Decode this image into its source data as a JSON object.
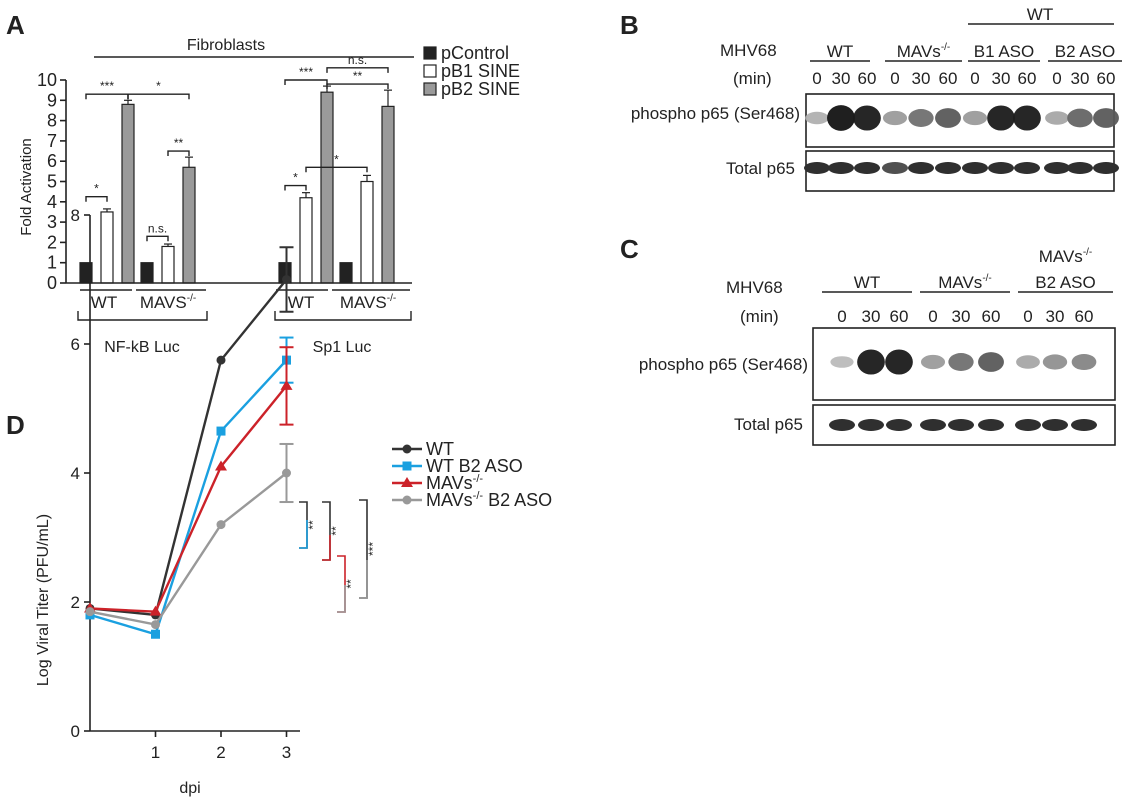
{
  "panels": {
    "A": {
      "label": "A",
      "group_title": "Fibroblasts",
      "reporters": [
        "NF-kB Luc",
        "Sp1 Luc"
      ],
      "cell_groups": [
        "WT",
        "MAVS"
      ],
      "sup": "-/-"
    },
    "B": {
      "label": "B",
      "virus": "MHV68",
      "time_unit": "(min)",
      "header_wt": "WT",
      "lanes": [
        {
          "name": "WT",
          "sup": "",
          "times": [
            "0",
            "30",
            "60"
          ]
        },
        {
          "name": "MAVs",
          "sup": "-/-",
          "times": [
            "0",
            "30",
            "60"
          ]
        },
        {
          "name": "B1 ASO",
          "sup": "",
          "times": [
            "0",
            "30",
            "60"
          ]
        },
        {
          "name": "B2 ASO",
          "sup": "",
          "times": [
            "0",
            "30",
            "60"
          ]
        }
      ],
      "rows": [
        "phospho p65 (Ser468)",
        "Total p65"
      ],
      "phospho_intensity": [
        0.25,
        0.98,
        0.95,
        0.35,
        0.55,
        0.65,
        0.35,
        0.95,
        0.95,
        0.3,
        0.6,
        0.65
      ],
      "total_intensity": [
        0.85,
        0.85,
        0.85,
        0.7,
        0.85,
        0.85,
        0.85,
        0.85,
        0.85,
        0.85,
        0.85,
        0.85
      ]
    },
    "C": {
      "label": "C",
      "virus": "MHV68",
      "time_unit": "(min)",
      "lanes": [
        {
          "name": "WT",
          "sup": "",
          "times": [
            "0",
            "30",
            "60"
          ]
        },
        {
          "name": "MAVs",
          "sup": "-/-",
          "times": [
            "0",
            "30",
            "60"
          ]
        },
        {
          "name": "B2 ASO",
          "top": "MAVs",
          "sup": "-/-",
          "times": [
            "0",
            "30",
            "60"
          ]
        }
      ],
      "rows": [
        "phospho p65 (Ser468)",
        "Total p65"
      ],
      "phospho_intensity": [
        0.2,
        0.95,
        0.95,
        0.35,
        0.55,
        0.65,
        0.3,
        0.4,
        0.45
      ],
      "total_intensity": [
        0.85,
        0.85,
        0.85,
        0.85,
        0.85,
        0.85,
        0.85,
        0.85,
        0.85
      ]
    },
    "D": {
      "label": "D"
    }
  },
  "chart_data": [
    {
      "type": "bar",
      "ylabel": "Fold Activation",
      "ylim": [
        0,
        10
      ],
      "yticks": [
        0,
        1,
        2,
        3,
        4,
        5,
        6,
        7,
        8,
        9,
        10
      ],
      "legend": [
        "pControl",
        "pB1 SINE",
        "pB2 SINE"
      ],
      "colors": [
        "#222222",
        "#ffffff",
        "#9a9a9a"
      ],
      "groups": [
        {
          "reporter": "NF-kB Luc",
          "cells": "WT",
          "values": [
            1.0,
            3.5,
            8.8
          ],
          "errors": [
            0,
            0.15,
            0.2
          ]
        },
        {
          "reporter": "NF-kB Luc",
          "cells": "MAVS-/-",
          "values": [
            1.0,
            1.8,
            5.7
          ],
          "errors": [
            0,
            0.12,
            0.5
          ]
        },
        {
          "reporter": "Sp1 Luc",
          "cells": "WT",
          "values": [
            1.0,
            4.2,
            9.4
          ],
          "errors": [
            0,
            0.25,
            0.3
          ]
        },
        {
          "reporter": "Sp1 Luc",
          "cells": "MAVS-/-",
          "values": [
            1.0,
            5.0,
            8.7
          ],
          "errors": [
            0,
            0.3,
            0.8
          ]
        }
      ],
      "significance": [
        {
          "label": "*"
        },
        {
          "label": "***"
        },
        {
          "label": "*"
        },
        {
          "label": "n.s."
        },
        {
          "label": "**"
        },
        {
          "label": "*"
        },
        {
          "label": "***"
        },
        {
          "label": "*"
        },
        {
          "label": "n.s."
        },
        {
          "label": "**"
        }
      ]
    },
    {
      "type": "line",
      "xlabel": "dpi",
      "ylabel": "Log Viral Titer (PFU/mL)",
      "ylim": [
        0,
        8
      ],
      "yticks": [
        0,
        2,
        4,
        6,
        8
      ],
      "xticks": [
        1,
        2,
        3
      ],
      "x": [
        0,
        1,
        2,
        3
      ],
      "series": [
        {
          "name": "WT",
          "sup": "",
          "color": "#333333",
          "marker": "circle",
          "values": [
            1.9,
            1.8,
            5.75,
            7.0
          ],
          "err3": 0.5
        },
        {
          "name": "WT B2 ASO",
          "sup": "",
          "color": "#1aa0e0",
          "marker": "square",
          "values": [
            1.8,
            1.5,
            4.65,
            5.75
          ],
          "err3": 0.35
        },
        {
          "name": "MAVs",
          "sup": "-/-",
          "color": "#cc2229",
          "marker": "triangle",
          "values": [
            1.9,
            1.85,
            4.1,
            5.35
          ],
          "err3": 0.6
        },
        {
          "name": "MAVs",
          "sup": "-/-",
          "suffix": " B2 ASO",
          "color": "#999999",
          "marker": "circle",
          "values": [
            1.85,
            1.65,
            3.2,
            4.0
          ],
          "err3": 0.45
        }
      ],
      "significance": [
        {
          "label": "**"
        },
        {
          "label": "**"
        },
        {
          "label": "**"
        },
        {
          "label": "***"
        }
      ]
    }
  ]
}
